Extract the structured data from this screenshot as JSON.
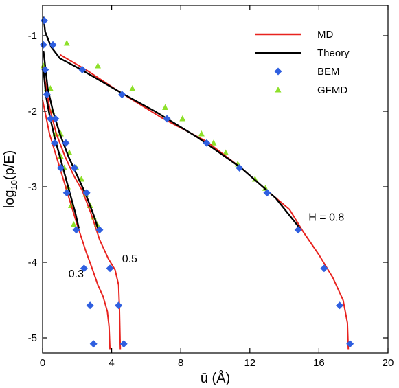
{
  "chart_data": {
    "type": "line",
    "title": "",
    "xlabel": "ū (Å)",
    "ylabel_parts": {
      "base": "log",
      "sub": "10",
      "rest": "(p/E)"
    },
    "xlim": [
      0,
      20
    ],
    "ylim": [
      -5.2,
      -0.6
    ],
    "xticks": [
      0,
      4,
      8,
      12,
      16,
      20
    ],
    "yticks": [
      -1,
      -2,
      -3,
      -4,
      -5
    ],
    "grid": false,
    "legend_position": "top-right",
    "legend": [
      {
        "label": "MD",
        "kind": "line",
        "color": "#e8231f"
      },
      {
        "label": "Theory",
        "kind": "line",
        "color": "#000000"
      },
      {
        "label": "BEM",
        "kind": "diamond",
        "color": "#2f5fe0"
      },
      {
        "label": "GFMD",
        "kind": "triangle",
        "color": "#8ee02a"
      }
    ],
    "annotations": [
      {
        "text": "0.3",
        "x": 1.5,
        "y": -4.2
      },
      {
        "text": "0.5",
        "x": 4.6,
        "y": -4.0
      },
      {
        "text": "H = 0.8",
        "x": 15.4,
        "y": -3.45
      }
    ],
    "series": [
      {
        "name": "MD",
        "group": "H=0.3",
        "style": "md",
        "points": [
          [
            0,
            -1.85
          ],
          [
            0.4,
            -2.3
          ],
          [
            0.8,
            -2.6
          ],
          [
            1.2,
            -2.9
          ],
          [
            1.6,
            -3.2
          ],
          [
            2.0,
            -3.5
          ],
          [
            2.5,
            -3.85
          ],
          [
            2.9,
            -4.1
          ],
          [
            3.2,
            -4.3
          ],
          [
            3.5,
            -4.45
          ],
          [
            3.75,
            -4.65
          ],
          [
            3.85,
            -4.85
          ],
          [
            3.9,
            -5.15
          ]
        ]
      },
      {
        "name": "MD",
        "group": "H=0.5",
        "style": "md",
        "points": [
          [
            0,
            -1.4
          ],
          [
            0.4,
            -1.95
          ],
          [
            0.8,
            -2.3
          ],
          [
            1.3,
            -2.6
          ],
          [
            1.8,
            -2.85
          ],
          [
            2.3,
            -3.05
          ],
          [
            2.8,
            -3.35
          ],
          [
            3.3,
            -3.7
          ],
          [
            3.8,
            -3.95
          ],
          [
            4.2,
            -4.1
          ],
          [
            4.4,
            -4.3
          ],
          [
            4.45,
            -4.6
          ],
          [
            4.5,
            -5.15
          ]
        ]
      },
      {
        "name": "MD",
        "group": "H=0.8",
        "style": "md",
        "points": [
          [
            1.0,
            -1.25
          ],
          [
            2.5,
            -1.45
          ],
          [
            4.5,
            -1.75
          ],
          [
            7.0,
            -2.1
          ],
          [
            9.5,
            -2.4
          ],
          [
            11.5,
            -2.75
          ],
          [
            13.0,
            -3.05
          ],
          [
            14.3,
            -3.3
          ],
          [
            15.1,
            -3.6
          ],
          [
            16.0,
            -3.9
          ],
          [
            16.8,
            -4.2
          ],
          [
            17.4,
            -4.5
          ],
          [
            17.65,
            -4.8
          ],
          [
            17.7,
            -5.15
          ]
        ]
      },
      {
        "name": "Theory",
        "group": "H=0.3",
        "style": "theory",
        "points": [
          [
            0.05,
            -1.45
          ],
          [
            0.2,
            -1.8
          ],
          [
            0.4,
            -2.05
          ],
          [
            0.7,
            -2.35
          ],
          [
            1.0,
            -2.6
          ],
          [
            1.3,
            -2.85
          ],
          [
            1.6,
            -3.1
          ],
          [
            1.9,
            -3.35
          ],
          [
            2.1,
            -3.55
          ]
        ]
      },
      {
        "name": "Theory",
        "group": "H=0.5",
        "style": "theory",
        "points": [
          [
            0.05,
            -1.2
          ],
          [
            0.3,
            -1.7
          ],
          [
            0.6,
            -2.0
          ],
          [
            1.0,
            -2.3
          ],
          [
            1.5,
            -2.6
          ],
          [
            2.0,
            -2.85
          ],
          [
            2.5,
            -3.1
          ],
          [
            3.0,
            -3.4
          ],
          [
            3.2,
            -3.55
          ]
        ]
      },
      {
        "name": "Theory",
        "group": "H=0.8",
        "style": "theory",
        "points": [
          [
            0.05,
            -0.75
          ],
          [
            0.15,
            -0.95
          ],
          [
            0.5,
            -1.15
          ],
          [
            1.0,
            -1.3
          ],
          [
            2.0,
            -1.42
          ],
          [
            3.0,
            -1.55
          ],
          [
            4.5,
            -1.75
          ],
          [
            6.5,
            -2.0
          ],
          [
            9.0,
            -2.35
          ],
          [
            11.5,
            -2.75
          ],
          [
            13.5,
            -3.15
          ],
          [
            14.9,
            -3.55
          ]
        ]
      },
      {
        "name": "BEM",
        "style": "diamond",
        "points": [
          [
            0.1,
            -0.8
          ],
          [
            0.05,
            -1.12
          ],
          [
            0.6,
            -1.12
          ],
          [
            0.15,
            -1.45
          ],
          [
            2.3,
            -1.45
          ],
          [
            0.25,
            -1.78
          ],
          [
            4.6,
            -1.78
          ],
          [
            0.45,
            -2.1
          ],
          [
            0.75,
            -2.1
          ],
          [
            7.2,
            -2.1
          ],
          [
            0.7,
            -2.42
          ],
          [
            1.35,
            -2.42
          ],
          [
            9.5,
            -2.42
          ],
          [
            1.05,
            -2.75
          ],
          [
            1.85,
            -2.75
          ],
          [
            11.4,
            -2.75
          ],
          [
            1.4,
            -3.08
          ],
          [
            2.55,
            -3.08
          ],
          [
            13.0,
            -3.08
          ],
          [
            1.95,
            -3.57
          ],
          [
            3.3,
            -3.57
          ],
          [
            14.8,
            -3.57
          ],
          [
            2.4,
            -4.08
          ],
          [
            3.9,
            -4.08
          ],
          [
            16.3,
            -4.08
          ],
          [
            2.75,
            -4.57
          ],
          [
            4.4,
            -4.57
          ],
          [
            17.2,
            -4.57
          ],
          [
            2.95,
            -5.08
          ],
          [
            4.7,
            -5.08
          ],
          [
            17.8,
            -5.08
          ]
        ]
      },
      {
        "name": "GFMD",
        "style": "triangle",
        "points": [
          [
            1.4,
            -1.1
          ],
          [
            3.2,
            -1.4
          ],
          [
            5.2,
            -1.7
          ],
          [
            7.1,
            -1.95
          ],
          [
            8.1,
            -2.1
          ],
          [
            9.2,
            -2.3
          ],
          [
            9.9,
            -2.42
          ],
          [
            10.6,
            -2.55
          ],
          [
            11.3,
            -2.7
          ],
          [
            12.3,
            -2.9
          ],
          [
            12.9,
            -3.02
          ],
          [
            0.05,
            -1.4
          ],
          [
            0.25,
            -1.7
          ],
          [
            0.45,
            -1.7
          ],
          [
            0.55,
            -2.0
          ],
          [
            0.75,
            -2.3
          ],
          [
            1.05,
            -2.6
          ],
          [
            1.25,
            -2.75
          ],
          [
            1.45,
            -3.0
          ],
          [
            1.65,
            -3.25
          ],
          [
            1.8,
            -3.5
          ],
          [
            0.65,
            -2.1
          ],
          [
            1.05,
            -2.3
          ],
          [
            1.55,
            -2.55
          ],
          [
            1.95,
            -2.75
          ],
          [
            2.25,
            -2.9
          ],
          [
            2.5,
            -3.1
          ],
          [
            2.75,
            -3.25
          ],
          [
            2.95,
            -3.4
          ],
          [
            3.15,
            -3.5
          ]
        ]
      }
    ]
  }
}
